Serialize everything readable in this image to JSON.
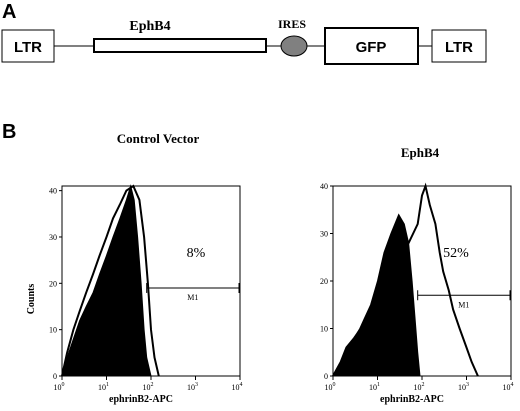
{
  "panelA": {
    "letter": "A",
    "elements": {
      "ltr_left": "LTR",
      "ephb4": "EphB4",
      "ires": "IRES",
      "gfp": "GFP",
      "ltr_right": "LTR"
    }
  },
  "panelB": {
    "letter": "B"
  },
  "chart_data": [
    {
      "type": "area",
      "title": "Control Vector",
      "xlabel": "ephrinB2-APC",
      "ylabel": "Counts",
      "xscale": "log",
      "xlim": [
        1,
        10000
      ],
      "ylim": [
        0,
        41
      ],
      "x_ticks": [
        "10",
        "10",
        "10",
        "10",
        "10"
      ],
      "x_tick_exponents": [
        "0",
        "1",
        "2",
        "3",
        "4"
      ],
      "y_ticks": [
        "0",
        "10",
        "20",
        "30",
        "40"
      ],
      "gate": {
        "label": "M1",
        "x_range": [
          80,
          10000
        ],
        "y": 19
      },
      "annotation": "8%",
      "series": [
        {
          "style": "filled",
          "x": [
            1,
            1.3,
            1.8,
            2.5,
            3.5,
            5,
            7,
            10,
            14,
            20,
            28,
            35,
            42,
            50,
            60,
            70,
            80,
            100
          ],
          "y": [
            0,
            4,
            8,
            12,
            15,
            18,
            22,
            26,
            30,
            34,
            38,
            41,
            38,
            30,
            20,
            10,
            4,
            0
          ]
        },
        {
          "style": "outline",
          "x": [
            1,
            1.3,
            1.8,
            2.5,
            3.5,
            5,
            7,
            10,
            14,
            20,
            28,
            40,
            55,
            70,
            85,
            100,
            120,
            150
          ],
          "y": [
            0,
            5,
            10,
            14,
            18,
            22,
            26,
            30,
            34,
            37,
            40,
            41,
            38,
            30,
            20,
            10,
            4,
            0
          ]
        }
      ]
    },
    {
      "type": "area",
      "title": "EphB4",
      "xlabel": "ephrinB2-APC",
      "ylabel": "",
      "xscale": "log",
      "xlim": [
        1,
        10000
      ],
      "ylim": [
        0,
        40
      ],
      "x_ticks": [
        "10",
        "10",
        "10",
        "10",
        "10"
      ],
      "x_tick_exponents": [
        "0",
        "1",
        "2",
        "3",
        "4"
      ],
      "y_ticks": [
        "0",
        "10",
        "20",
        "30",
        "40"
      ],
      "gate": {
        "label": "M1",
        "x_range": [
          80,
          10000
        ],
        "y": 17
      },
      "annotation": "52%",
      "series": [
        {
          "style": "filled",
          "x": [
            1,
            1.5,
            2,
            3,
            4,
            5,
            7,
            10,
            14,
            20,
            30,
            40,
            50,
            60,
            70,
            80,
            90
          ],
          "y": [
            0,
            3,
            6,
            8,
            10,
            12,
            15,
            20,
            26,
            30,
            34,
            32,
            28,
            20,
            12,
            5,
            0
          ]
        },
        {
          "style": "outline",
          "x": [
            1,
            1.5,
            2,
            3,
            5,
            8,
            12,
            20,
            30,
            50,
            80,
            100,
            120,
            150,
            200,
            250,
            300,
            400,
            500,
            700,
            1000,
            1300,
            1800
          ],
          "y": [
            0,
            3,
            6,
            8,
            11,
            14,
            18,
            22,
            25,
            28,
            32,
            38,
            40,
            36,
            32,
            26,
            22,
            18,
            14,
            10,
            6,
            3,
            0
          ]
        }
      ]
    }
  ]
}
